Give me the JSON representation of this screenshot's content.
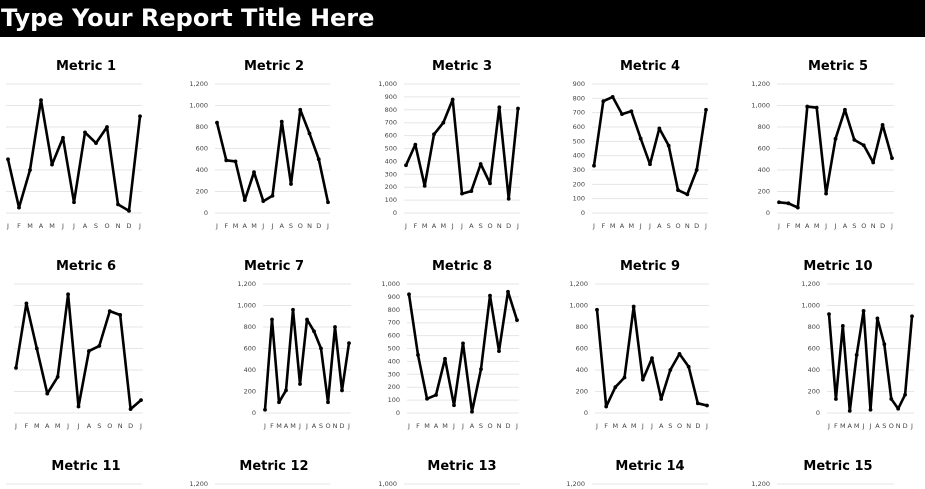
{
  "report": {
    "title": "Type Your Report Title Here"
  },
  "colors": {
    "header_bg": "#000000",
    "header_text": "#ffffff",
    "line": "#000000",
    "gridline": "#e6e6e6",
    "tick_text": "#444444"
  },
  "chart_data": [
    {
      "type": "line",
      "title": "Metric 1",
      "categories": [
        "J",
        "F",
        "M",
        "A",
        "M",
        "J",
        "J",
        "A",
        "S",
        "O",
        "N",
        "D",
        "J"
      ],
      "values": [
        500,
        50,
        400,
        1050,
        450,
        700,
        100,
        750,
        650,
        800,
        80,
        20,
        900
      ],
      "ylim": [
        0,
        1200
      ],
      "yticks": [],
      "grid": true,
      "legend": "none"
    },
    {
      "type": "line",
      "title": "Metric 2",
      "categories": [
        "J",
        "F",
        "M",
        "A",
        "M",
        "J",
        "J",
        "A",
        "S",
        "O",
        "N",
        "D",
        "J"
      ],
      "values": [
        840,
        490,
        480,
        120,
        380,
        110,
        160,
        850,
        270,
        960,
        740,
        500,
        100
      ],
      "ylim": [
        0,
        1200
      ],
      "yticks": [
        "0",
        "200",
        "400",
        "600",
        "800",
        "1,000",
        "1,200"
      ],
      "grid": true,
      "legend": "none"
    },
    {
      "type": "line",
      "title": "Metric 3",
      "categories": [
        "J",
        "F",
        "M",
        "A",
        "M",
        "J",
        "J",
        "A",
        "S",
        "O",
        "N",
        "D",
        "J"
      ],
      "values": [
        370,
        530,
        210,
        610,
        700,
        880,
        150,
        170,
        380,
        230,
        820,
        110,
        810
      ],
      "ylim": [
        0,
        1000
      ],
      "yticks": [
        "0",
        "100",
        "200",
        "300",
        "400",
        "500",
        "600",
        "700",
        "800",
        "900",
        "1,000"
      ],
      "grid": true,
      "legend": "none"
    },
    {
      "type": "line",
      "title": "Metric 4",
      "categories": [
        "J",
        "F",
        "M",
        "A",
        "M",
        "J",
        "J",
        "A",
        "S",
        "O",
        "N",
        "D",
        "J"
      ],
      "values": [
        330,
        780,
        810,
        690,
        710,
        520,
        340,
        590,
        470,
        160,
        130,
        300,
        720
      ],
      "ylim": [
        0,
        900
      ],
      "yticks": [
        "0",
        "100",
        "200",
        "300",
        "400",
        "500",
        "600",
        "700",
        "800",
        "900"
      ],
      "grid": true,
      "legend": "none"
    },
    {
      "type": "line",
      "title": "Metric 5",
      "categories": [
        "J",
        "F",
        "M",
        "A",
        "M",
        "J",
        "J",
        "A",
        "S",
        "O",
        "N",
        "D",
        "J"
      ],
      "values": [
        100,
        90,
        50,
        990,
        980,
        180,
        690,
        960,
        680,
        630,
        470,
        820,
        510
      ],
      "ylim": [
        0,
        1200
      ],
      "yticks": [
        "0",
        "200",
        "400",
        "600",
        "800",
        "1,000",
        "1,200"
      ],
      "grid": true,
      "legend": "none"
    },
    {
      "type": "line",
      "title": "Metric 6",
      "categories": [
        "J",
        "F",
        "M",
        "A",
        "M",
        "J",
        "J",
        "A",
        "S",
        "O",
        "N",
        "D",
        "J"
      ],
      "values": [
        350,
        850,
        500,
        150,
        280,
        920,
        50,
        480,
        520,
        790,
        760,
        30,
        100
      ],
      "ylim": [
        0,
        1000
      ],
      "yticks": [],
      "grid": true,
      "legend": "none"
    },
    {
      "type": "line",
      "title": "Metric 7",
      "categories": [
        "J",
        "F",
        "M",
        "A",
        "M",
        "J",
        "J",
        "A",
        "S",
        "O",
        "N",
        "D",
        "J"
      ],
      "values": [
        30,
        870,
        100,
        210,
        960,
        270,
        870,
        760,
        600,
        100,
        800,
        210,
        650
      ],
      "ylim": [
        0,
        1200
      ],
      "yticks": [
        "0",
        "200",
        "400",
        "600",
        "800",
        "1,000",
        "1,200"
      ],
      "grid": true,
      "legend": "none"
    },
    {
      "type": "line",
      "title": "Metric 8",
      "categories": [
        "J",
        "F",
        "M",
        "A",
        "M",
        "J",
        "J",
        "A",
        "S",
        "O",
        "N",
        "D",
        "J"
      ],
      "values": [
        920,
        450,
        110,
        140,
        420,
        60,
        540,
        10,
        340,
        910,
        480,
        940,
        720
      ],
      "ylim": [
        0,
        1000
      ],
      "yticks": [
        "0",
        "100",
        "200",
        "300",
        "400",
        "500",
        "600",
        "700",
        "800",
        "900",
        "1,000"
      ],
      "grid": true,
      "legend": "none"
    },
    {
      "type": "line",
      "title": "Metric 9",
      "categories": [
        "J",
        "F",
        "M",
        "A",
        "M",
        "J",
        "J",
        "A",
        "S",
        "O",
        "N",
        "D",
        "J"
      ],
      "values": [
        960,
        60,
        240,
        330,
        990,
        310,
        510,
        130,
        400,
        550,
        430,
        90,
        70
      ],
      "ylim": [
        0,
        1200
      ],
      "yticks": [
        "0",
        "200",
        "400",
        "600",
        "800",
        "1,000",
        "1,200"
      ],
      "grid": true,
      "legend": "none"
    },
    {
      "type": "line",
      "title": "Metric 10",
      "categories": [
        "J",
        "F",
        "M",
        "A",
        "M",
        "J",
        "J",
        "A",
        "S",
        "O",
        "N",
        "D",
        "J"
      ],
      "values": [
        920,
        130,
        810,
        20,
        540,
        950,
        30,
        880,
        640,
        130,
        40,
        170,
        900
      ],
      "ylim": [
        0,
        1200
      ],
      "yticks": [
        "0",
        "200",
        "400",
        "600",
        "800",
        "1,000",
        "1,200"
      ],
      "grid": true,
      "legend": "none"
    },
    {
      "type": "line",
      "title": "Metric 11",
      "categories": [],
      "values": [],
      "ylim": [
        0,
        1200
      ],
      "yticks": [],
      "grid": true,
      "legend": "none"
    },
    {
      "type": "line",
      "title": "Metric 12",
      "categories": [],
      "values": [],
      "ylim": [
        0,
        1200
      ],
      "yticks": [
        "1,200"
      ],
      "grid": true,
      "legend": "none"
    },
    {
      "type": "line",
      "title": "Metric 13",
      "categories": [],
      "values": [],
      "ylim": [
        0,
        1000
      ],
      "yticks": [
        "1,000"
      ],
      "grid": true,
      "legend": "none"
    },
    {
      "type": "line",
      "title": "Metric 14",
      "categories": [],
      "values": [],
      "ylim": [
        0,
        1200
      ],
      "yticks": [
        "1,200"
      ],
      "grid": true,
      "legend": "none"
    },
    {
      "type": "line",
      "title": "Metric 15",
      "categories": [],
      "values": [],
      "ylim": [
        0,
        1200
      ],
      "yticks": [
        "1,200"
      ],
      "grid": true,
      "legend": "none"
    }
  ]
}
